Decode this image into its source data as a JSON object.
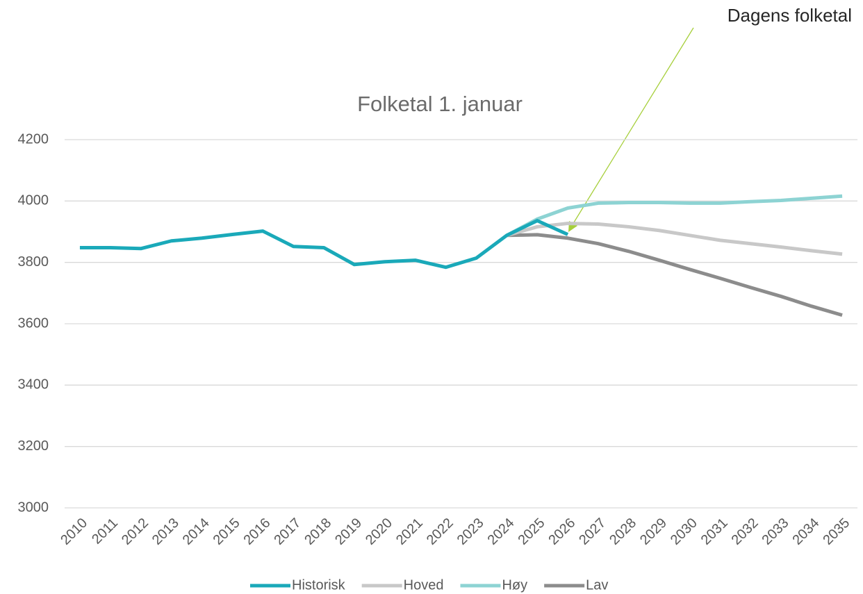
{
  "chart_data": {
    "type": "line",
    "title": "Folketal 1. januar",
    "categories": [
      "2010",
      "2011",
      "2012",
      "2013",
      "2014",
      "2015",
      "2016",
      "2017",
      "2018",
      "2019",
      "2020",
      "2021",
      "2022",
      "2023",
      "2024",
      "2025",
      "2026",
      "2027",
      "2028",
      "2029",
      "2030",
      "2031",
      "2032",
      "2033",
      "2034",
      "2035"
    ],
    "series": [
      {
        "name": "Historisk",
        "color": "#1aa9b9",
        "values": [
          3848,
          3848,
          3845,
          3870,
          3879,
          3891,
          3902,
          3852,
          3848,
          3793,
          3802,
          3807,
          3784,
          3814,
          3888,
          3936,
          3891,
          null,
          null,
          null,
          null,
          null,
          null,
          null,
          null,
          null
        ]
      },
      {
        "name": "Hoved",
        "color": "#c8c8c8",
        "values": [
          null,
          null,
          null,
          null,
          null,
          null,
          null,
          null,
          null,
          null,
          null,
          null,
          null,
          null,
          3888,
          3916,
          3927,
          3925,
          3916,
          3904,
          3888,
          3872,
          3861,
          3850,
          3838,
          3827
        ]
      },
      {
        "name": "Høy",
        "color": "#8dd3d3",
        "values": [
          null,
          null,
          null,
          null,
          null,
          null,
          null,
          null,
          null,
          null,
          null,
          null,
          null,
          null,
          3888,
          3941,
          3977,
          3993,
          3995,
          3995,
          3993,
          3993,
          3998,
          4002,
          4009,
          4016
        ]
      },
      {
        "name": "Lav",
        "color": "#8c8c8c",
        "values": [
          null,
          null,
          null,
          null,
          null,
          null,
          null,
          null,
          null,
          null,
          null,
          null,
          null,
          null,
          3888,
          3890,
          3879,
          3861,
          3836,
          3807,
          3777,
          3748,
          3718,
          3689,
          3657,
          3628
        ]
      }
    ],
    "ylim": [
      3000,
      4200
    ],
    "yticks": [
      3000,
      3200,
      3400,
      3600,
      3800,
      4000,
      4200
    ],
    "grid": true,
    "legend": "bottom",
    "annotation": "Dagens folketal"
  }
}
